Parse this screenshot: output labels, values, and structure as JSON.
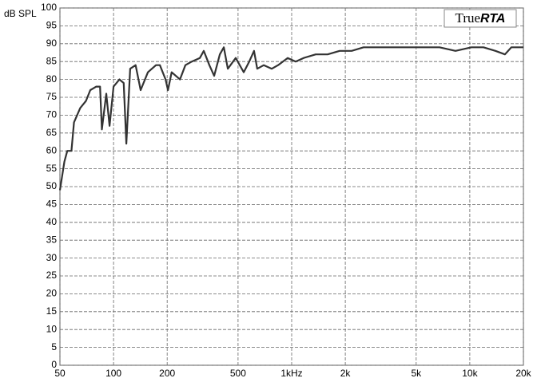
{
  "chart_data": {
    "type": "line",
    "y_label": "dB SPL",
    "logo_text": "True",
    "logo_bold_text": "RTA",
    "x_log": true,
    "grid": true,
    "xlim": [
      50,
      20000
    ],
    "xticks": [
      50,
      100,
      200,
      500,
      {
        "value": 1000,
        "label": "1kHz"
      },
      {
        "value": 2000,
        "label": "2k"
      },
      {
        "value": 5000,
        "label": "5k"
      },
      {
        "value": 10000,
        "label": "10k"
      },
      {
        "value": 20000,
        "label": "20k"
      }
    ],
    "ylim": [
      0,
      100
    ],
    "yticks": [
      0,
      5,
      10,
      15,
      20,
      25,
      30,
      35,
      40,
      45,
      50,
      55,
      60,
      65,
      70,
      75,
      80,
      85,
      90,
      95,
      100
    ],
    "x": [
      50,
      53,
      55,
      58,
      60,
      65,
      70,
      74,
      80,
      84,
      86,
      91,
      95,
      100,
      108,
      114,
      118,
      124,
      133,
      142,
      156,
      173,
      182,
      196,
      202,
      212,
      236,
      253,
      275,
      305,
      321,
      345,
      367,
      395,
      416,
      438,
      485,
      538,
      578,
      615,
      641,
      697,
      773,
      839,
      950,
      1053,
      1168,
      1364,
      1592,
      1859,
      2170,
      2534,
      2958,
      3637,
      4471,
      5497,
      6759,
      8310,
      10215,
      11929,
      13930,
      15760,
      17120,
      20000
    ],
    "series": [
      {
        "color": "#333333",
        "values": [
          49,
          57,
          60,
          60,
          68,
          72,
          74,
          77,
          78,
          78,
          66,
          76,
          67,
          78,
          80,
          79,
          62,
          83,
          84,
          77,
          82,
          84,
          84,
          80,
          77,
          82,
          80,
          84,
          85,
          86,
          88,
          84,
          81,
          87,
          89,
          83,
          86,
          82,
          85,
          88,
          83,
          84,
          83,
          84,
          86,
          85,
          86,
          87,
          87,
          88,
          88,
          89,
          89,
          89,
          89,
          89,
          89,
          88,
          89,
          89,
          88,
          87,
          89,
          89
        ]
      }
    ]
  }
}
